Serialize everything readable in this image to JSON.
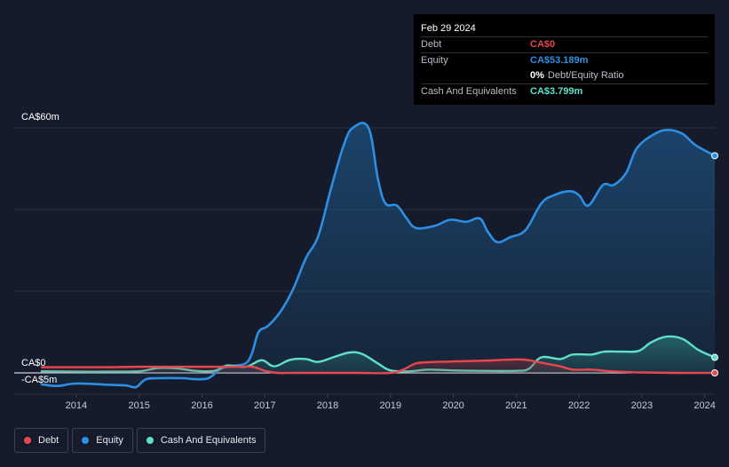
{
  "colors": {
    "debt": "#e8474f",
    "equity": "#2d8fe4",
    "cash": "#5fe0c8",
    "background": "#151b2a"
  },
  "tooltip": {
    "date": "Feb 29 2024",
    "debt_label": "Debt",
    "debt_value": "CA$0",
    "equity_label": "Equity",
    "equity_value": "CA$53.189m",
    "ratio_value": "0%",
    "ratio_label": "Debt/Equity Ratio",
    "cash_label": "Cash And Equivalents",
    "cash_value": "CA$3.799m"
  },
  "legend": {
    "debt": "Debt",
    "equity": "Equity",
    "cash": "Cash And Equivalents"
  },
  "chart_data": {
    "type": "area",
    "title": "",
    "xlabel": "",
    "ylabel": "",
    "ylim": [
      -5,
      60
    ],
    "y_tick_labels": [
      {
        "value": 60,
        "label": "CA$60m"
      },
      {
        "value": 0,
        "label": "CA$0"
      },
      {
        "value": -5,
        "label": "-CA$5m"
      }
    ],
    "x_tick_labels": [
      {
        "value": 2014,
        "label": "2014"
      },
      {
        "value": 2015,
        "label": "2015"
      },
      {
        "value": 2016,
        "label": "2016"
      },
      {
        "value": 2017,
        "label": "2017"
      },
      {
        "value": 2018,
        "label": "2018"
      },
      {
        "value": 2019,
        "label": "2019"
      },
      {
        "value": 2020,
        "label": "2020"
      },
      {
        "value": 2021,
        "label": "2021"
      },
      {
        "value": 2022,
        "label": "2022"
      },
      {
        "value": 2023,
        "label": "2023"
      },
      {
        "value": 2024,
        "label": "2024"
      }
    ],
    "xlim": [
      2013.45,
      2024.16
    ],
    "series": [
      {
        "name": "Debt",
        "key": "debt",
        "points": [
          [
            2013.45,
            1.4
          ],
          [
            2014.0,
            1.4
          ],
          [
            2014.5,
            1.4
          ],
          [
            2015.0,
            1.5
          ],
          [
            2015.5,
            1.5
          ],
          [
            2016.0,
            1.5
          ],
          [
            2016.5,
            1.5
          ],
          [
            2016.8,
            1.5
          ],
          [
            2017.0,
            0.5
          ],
          [
            2017.2,
            0.0
          ],
          [
            2017.5,
            0.0
          ],
          [
            2018.0,
            0.0
          ],
          [
            2018.5,
            0.0
          ],
          [
            2019.0,
            0.0
          ],
          [
            2019.2,
            0.8
          ],
          [
            2019.4,
            2.3
          ],
          [
            2019.6,
            2.6
          ],
          [
            2020.0,
            2.8
          ],
          [
            2020.5,
            3.0
          ],
          [
            2021.0,
            3.3
          ],
          [
            2021.2,
            3.1
          ],
          [
            2021.4,
            2.5
          ],
          [
            2021.7,
            1.6
          ],
          [
            2021.9,
            0.8
          ],
          [
            2022.2,
            0.8
          ],
          [
            2022.5,
            0.4
          ],
          [
            2022.8,
            0.2
          ],
          [
            2023.0,
            0.1
          ],
          [
            2023.5,
            0.0
          ],
          [
            2024.16,
            0.0
          ]
        ]
      },
      {
        "name": "Equity",
        "key": "equity",
        "points": [
          [
            2013.45,
            -2.8
          ],
          [
            2013.7,
            -3.2
          ],
          [
            2014.0,
            -2.6
          ],
          [
            2014.5,
            -2.9
          ],
          [
            2014.8,
            -3.1
          ],
          [
            2014.95,
            -3.5
          ],
          [
            2015.1,
            -1.6
          ],
          [
            2015.3,
            -1.3
          ],
          [
            2015.7,
            -1.3
          ],
          [
            2015.85,
            -1.5
          ],
          [
            2016.1,
            -1.3
          ],
          [
            2016.3,
            1.0
          ],
          [
            2016.5,
            1.7
          ],
          [
            2016.7,
            2.4
          ],
          [
            2016.8,
            5.0
          ],
          [
            2016.9,
            10.0
          ],
          [
            2017.05,
            11.5
          ],
          [
            2017.25,
            15.0
          ],
          [
            2017.45,
            20.5
          ],
          [
            2017.65,
            28.0
          ],
          [
            2017.85,
            33.5
          ],
          [
            2018.05,
            45.0
          ],
          [
            2018.25,
            55.5
          ],
          [
            2018.4,
            60.0
          ],
          [
            2018.65,
            60.0
          ],
          [
            2018.8,
            47.5
          ],
          [
            2018.92,
            41.5
          ],
          [
            2019.1,
            41.0
          ],
          [
            2019.25,
            38.0
          ],
          [
            2019.4,
            35.5
          ],
          [
            2019.7,
            36.0
          ],
          [
            2019.95,
            37.5
          ],
          [
            2020.2,
            37.0
          ],
          [
            2020.42,
            37.8
          ],
          [
            2020.55,
            34.5
          ],
          [
            2020.7,
            32.0
          ],
          [
            2020.9,
            33.2
          ],
          [
            2021.15,
            35.0
          ],
          [
            2021.4,
            41.5
          ],
          [
            2021.6,
            43.5
          ],
          [
            2021.85,
            44.5
          ],
          [
            2022.0,
            43.5
          ],
          [
            2022.15,
            41.0
          ],
          [
            2022.38,
            46.0
          ],
          [
            2022.55,
            46.0
          ],
          [
            2022.75,
            49.0
          ],
          [
            2022.92,
            55.0
          ],
          [
            2023.2,
            58.5
          ],
          [
            2023.42,
            59.5
          ],
          [
            2023.65,
            58.5
          ],
          [
            2023.85,
            55.8
          ],
          [
            2024.16,
            53.189
          ]
        ]
      },
      {
        "name": "Cash And Equivalents",
        "key": "cash",
        "points": [
          [
            2013.45,
            0.4
          ],
          [
            2014.0,
            0.3
          ],
          [
            2014.5,
            0.3
          ],
          [
            2015.0,
            0.4
          ],
          [
            2015.3,
            1.2
          ],
          [
            2015.6,
            1.1
          ],
          [
            2015.9,
            0.5
          ],
          [
            2016.2,
            0.5
          ],
          [
            2016.4,
            1.8
          ],
          [
            2016.7,
            1.5
          ],
          [
            2016.95,
            3.1
          ],
          [
            2017.15,
            1.6
          ],
          [
            2017.4,
            3.2
          ],
          [
            2017.65,
            3.4
          ],
          [
            2017.85,
            2.7
          ],
          [
            2018.1,
            3.9
          ],
          [
            2018.35,
            5.0
          ],
          [
            2018.55,
            4.6
          ],
          [
            2018.8,
            2.3
          ],
          [
            2019.0,
            0.6
          ],
          [
            2019.3,
            0.4
          ],
          [
            2019.6,
            0.8
          ],
          [
            2020.0,
            0.6
          ],
          [
            2020.5,
            0.5
          ],
          [
            2021.0,
            0.5
          ],
          [
            2021.2,
            1.0
          ],
          [
            2021.4,
            3.8
          ],
          [
            2021.7,
            3.4
          ],
          [
            2021.9,
            4.5
          ],
          [
            2022.2,
            4.5
          ],
          [
            2022.4,
            5.2
          ],
          [
            2022.7,
            5.2
          ],
          [
            2022.95,
            5.4
          ],
          [
            2023.15,
            7.5
          ],
          [
            2023.4,
            8.9
          ],
          [
            2023.65,
            8.3
          ],
          [
            2023.9,
            5.6
          ],
          [
            2024.16,
            3.799
          ]
        ]
      }
    ]
  }
}
